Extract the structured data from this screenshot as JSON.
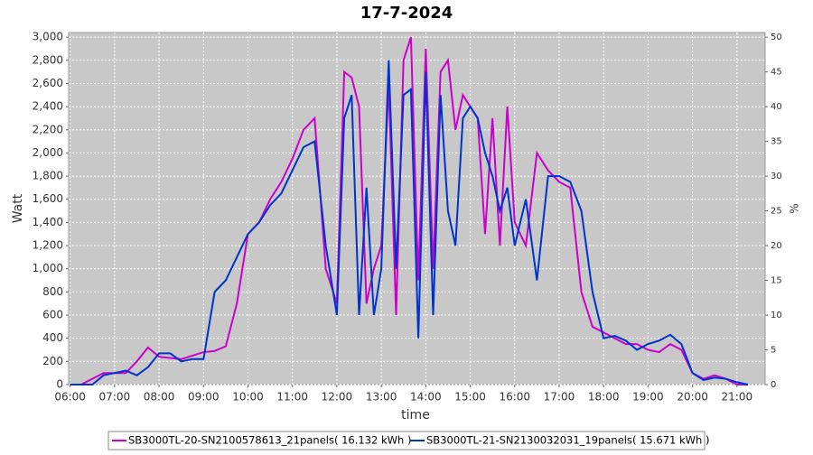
{
  "chart_data": {
    "type": "line",
    "title": "17-7-2024",
    "x_label": "time",
    "y_label": "Watt",
    "y2_label": "%",
    "x": [
      "06:00",
      "06:15",
      "06:30",
      "06:45",
      "07:00",
      "07:15",
      "07:30",
      "07:45",
      "08:00",
      "08:15",
      "08:30",
      "08:45",
      "09:00",
      "09:15",
      "09:30",
      "09:45",
      "10:00",
      "10:15",
      "10:30",
      "10:45",
      "11:00",
      "11:15",
      "11:30",
      "11:45",
      "12:00",
      "12:10",
      "12:20",
      "12:30",
      "12:40",
      "12:50",
      "13:00",
      "13:10",
      "13:20",
      "13:30",
      "13:40",
      "13:50",
      "14:00",
      "14:10",
      "14:20",
      "14:30",
      "14:40",
      "14:50",
      "15:00",
      "15:10",
      "15:20",
      "15:30",
      "15:40",
      "15:50",
      "16:00",
      "16:15",
      "16:30",
      "16:45",
      "17:00",
      "17:15",
      "17:30",
      "17:45",
      "18:00",
      "18:15",
      "18:30",
      "18:45",
      "19:00",
      "19:15",
      "19:30",
      "19:45",
      "20:00",
      "20:15",
      "20:30",
      "20:45",
      "21:00",
      "21:15"
    ],
    "series": [
      {
        "name": "SB3000TL-20-SN2100578613_21panels( 16.132 kWh )",
        "color": "#cc00cc",
        "values": [
          0,
          0,
          50,
          100,
          100,
          100,
          200,
          320,
          240,
          230,
          220,
          250,
          280,
          290,
          330,
          700,
          1300,
          1400,
          1600,
          1750,
          1950,
          2200,
          2300,
          1000,
          700,
          2700,
          2650,
          2400,
          700,
          1000,
          1200,
          2600,
          600,
          2800,
          3000,
          900,
          2900,
          1000,
          2700,
          2800,
          2200,
          2500,
          2400,
          2300,
          1300,
          2300,
          1200,
          2400,
          1400,
          1200,
          2000,
          1850,
          1750,
          1700,
          800,
          500,
          450,
          400,
          350,
          350,
          300,
          280,
          350,
          300,
          100,
          50,
          80,
          50,
          0,
          0
        ]
      },
      {
        "name": "SB3000TL-21-SN2130032031_19panels( 15.671 kWh )",
        "color": "#0033cc",
        "values": [
          0,
          0,
          0,
          80,
          100,
          120,
          80,
          150,
          270,
          270,
          200,
          220,
          220,
          800,
          900,
          1100,
          1300,
          1400,
          1550,
          1650,
          1850,
          2050,
          2100,
          1200,
          600,
          2300,
          2500,
          600,
          1700,
          600,
          1000,
          2800,
          1000,
          2500,
          2550,
          400,
          2700,
          600,
          2500,
          1500,
          1200,
          2300,
          2400,
          2300,
          2000,
          1800,
          1500,
          1700,
          1200,
          1600,
          900,
          1800,
          1800,
          1750,
          1500,
          800,
          400,
          420,
          380,
          300,
          350,
          380,
          430,
          350,
          100,
          40,
          60,
          50,
          20,
          0
        ]
      }
    ],
    "xlim": [
      "05:58",
      "21:38"
    ],
    "xticks": [
      "06:00",
      "07:00",
      "08:00",
      "09:00",
      "10:00",
      "11:00",
      "12:00",
      "13:00",
      "14:00",
      "15:00",
      "16:00",
      "17:00",
      "18:00",
      "19:00",
      "20:00",
      "21:00"
    ],
    "ylim": [
      0,
      3040
    ],
    "yticks": [
      0,
      200,
      400,
      600,
      800,
      {
        "value": 1000,
        "label": "1,000"
      },
      {
        "value": 1200,
        "label": "1,200"
      },
      {
        "value": 1400,
        "label": "1,400"
      },
      {
        "value": 1600,
        "label": "1,600"
      },
      {
        "value": 1800,
        "label": "1,800"
      },
      {
        "value": 2000,
        "label": "2,000"
      },
      {
        "value": 2200,
        "label": "2,200"
      },
      {
        "value": 2400,
        "label": "2,400"
      },
      {
        "value": 2600,
        "label": "2,600"
      },
      {
        "value": 2800,
        "label": "2,800"
      },
      {
        "value": 3000,
        "label": "3,000"
      }
    ],
    "y2lim": [
      0,
      50.67
    ],
    "y2ticks": [
      0,
      5,
      10,
      15,
      20,
      25,
      30,
      35,
      40,
      45,
      50
    ],
    "grid": true
  }
}
